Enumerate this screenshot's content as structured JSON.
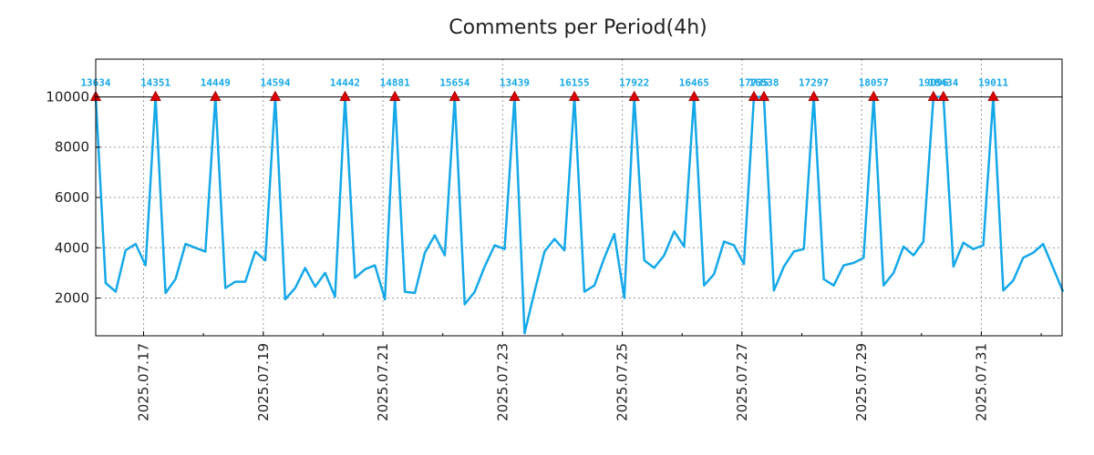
{
  "chart_data": {
    "type": "line",
    "title": "Comments per Period(4h)",
    "xlabel": "",
    "ylabel": "",
    "ylim": [
      500,
      11500
    ],
    "clip_value": 10000,
    "y_ticks": [
      2000,
      4000,
      6000,
      8000,
      10000
    ],
    "x_tick_labels": [
      "2025.07.17",
      "2025.07.19",
      "2025.07.21",
      "2025.07.23",
      "2025.07.25",
      "2025.07.27",
      "2025.07.29",
      "2025.07.31"
    ],
    "x_tick_days": [
      17,
      19,
      21,
      23,
      25,
      27,
      29,
      31
    ],
    "xlim_days": [
      16.2,
      32.35
    ],
    "grid": true,
    "colors": {
      "line": "#15a8e8",
      "marker": "#dd0000",
      "peak_label": "#15a8e8",
      "clip_line": "#000000"
    },
    "series": [
      {
        "values": [
          13634,
          2600,
          2250,
          3900,
          4150,
          3300,
          14351,
          2200,
          2750,
          4150,
          4000,
          3850,
          14449,
          2400,
          2650,
          2650,
          3850,
          3500,
          14594,
          1950,
          2400,
          3200,
          2450,
          3000,
          2050,
          14442,
          2800,
          3150,
          3300,
          1950,
          14881,
          2250,
          2200,
          3800,
          4500,
          3700,
          15654,
          1750,
          2250,
          3250,
          4100,
          3950,
          13439,
          600,
          2250,
          3850,
          4350,
          3900,
          16155,
          2250,
          2500,
          3600,
          4550,
          2000,
          17922,
          3500,
          3200,
          3700,
          4650,
          4050,
          16465,
          2500,
          2950,
          4250,
          4100,
          3350,
          17735,
          16538,
          2300,
          3250,
          3850,
          3950,
          17297,
          2750,
          2500,
          3300,
          3400,
          3600,
          18057,
          2500,
          3000,
          4050,
          3700,
          4250,
          19096,
          18434,
          3250,
          4200,
          3950,
          4100,
          19011,
          2300,
          2700,
          3600,
          3800,
          4150,
          3200,
          2250
        ]
      }
    ],
    "peaks": [
      {
        "label": "13634"
      },
      {
        "label": "14351"
      },
      {
        "label": "14449"
      },
      {
        "label": "14594"
      },
      {
        "label": "14442"
      },
      {
        "label": "14881"
      },
      {
        "label": "15654"
      },
      {
        "label": "13439"
      },
      {
        "label": "16155"
      },
      {
        "label": "17922"
      },
      {
        "label": "16465"
      },
      {
        "label": "17735"
      },
      {
        "label": "16538"
      },
      {
        "label": "17297"
      },
      {
        "label": "18057"
      },
      {
        "label": "19096"
      },
      {
        "label": "18434"
      },
      {
        "label": "19011"
      }
    ]
  }
}
